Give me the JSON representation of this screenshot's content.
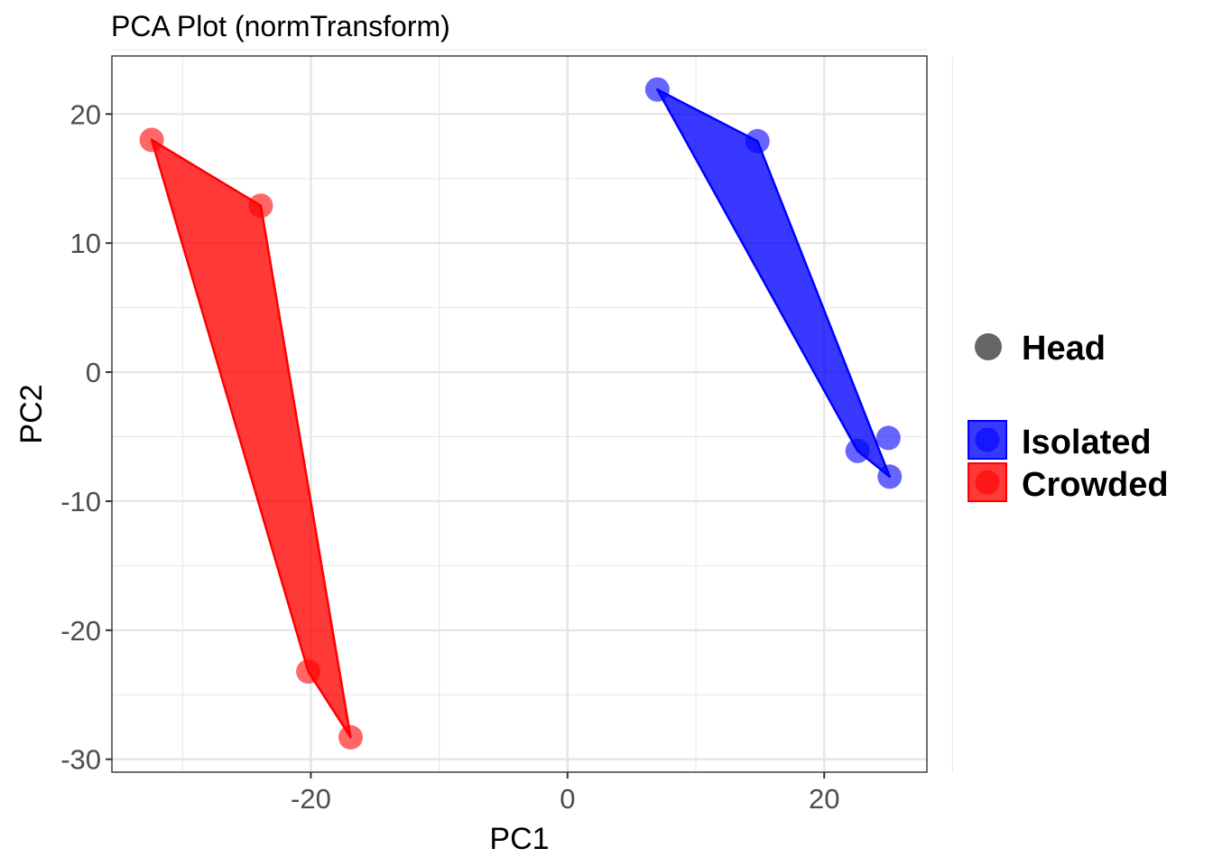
{
  "chart_data": {
    "type": "scatter",
    "title": "PCA Plot (normTransform)",
    "xlabel": "PC1",
    "ylabel": "PC2",
    "xlim": [
      -35.5,
      28
    ],
    "ylim": [
      -31,
      24.5
    ],
    "x_ticks": [
      -20,
      0,
      20
    ],
    "y_ticks": [
      -30,
      -20,
      -10,
      0,
      10,
      20
    ],
    "grid": true,
    "legend_position": "right",
    "shape_legend": {
      "label": "Head",
      "color": "#666666"
    },
    "series": [
      {
        "name": "Isolated",
        "color": "#0000ff",
        "points": [
          {
            "x": 7.0,
            "y": 21.9
          },
          {
            "x": 14.8,
            "y": 17.9
          },
          {
            "x": 25.0,
            "y": -5.1
          },
          {
            "x": 22.6,
            "y": -6.1
          },
          {
            "x": 25.1,
            "y": -8.1
          }
        ],
        "hull": [
          0,
          1,
          4,
          3
        ]
      },
      {
        "name": "Crowded",
        "color": "#ff0000",
        "points": [
          {
            "x": -32.4,
            "y": 18.0
          },
          {
            "x": -23.9,
            "y": 12.9
          },
          {
            "x": -20.2,
            "y": -23.2
          },
          {
            "x": -16.9,
            "y": -28.3
          }
        ],
        "hull": [
          0,
          1,
          3,
          2
        ]
      }
    ]
  }
}
